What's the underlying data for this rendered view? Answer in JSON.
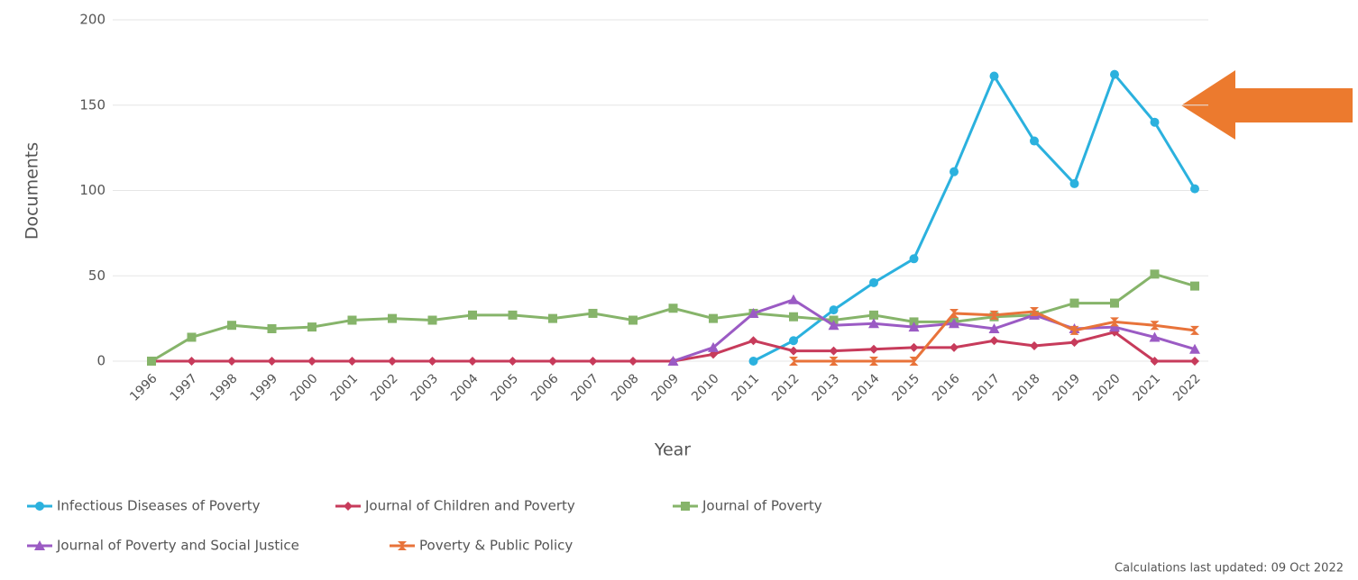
{
  "chart_data": {
    "type": "line",
    "x_label": "Year",
    "y_label": "Documents",
    "footnote": "Calculations last updated: 09 Oct 2022",
    "categories": [
      "1996",
      "1997",
      "1998",
      "1999",
      "2000",
      "2001",
      "2002",
      "2003",
      "2004",
      "2005",
      "2006",
      "2007",
      "2008",
      "2009",
      "2010",
      "2011",
      "2012",
      "2013",
      "2014",
      "2015",
      "2016",
      "2017",
      "2018",
      "2019",
      "2020",
      "2021",
      "2022"
    ],
    "ylim": [
      0,
      200
    ],
    "yticks": [
      0,
      50,
      100,
      150,
      200
    ],
    "grid": true,
    "legend": "bottom",
    "series": [
      {
        "name": "Infectious Diseases of Poverty",
        "color": "#2bb1de",
        "marker": "circle",
        "values": [
          null,
          null,
          null,
          null,
          null,
          null,
          null,
          null,
          null,
          null,
          null,
          null,
          null,
          null,
          null,
          0,
          12,
          30,
          46,
          60,
          111,
          167,
          129,
          104,
          168,
          140,
          101
        ]
      },
      {
        "name": "Journal of Children and Poverty",
        "color": "#c73b5b",
        "marker": "diamond",
        "values": [
          0,
          0,
          0,
          0,
          0,
          0,
          0,
          0,
          0,
          0,
          0,
          0,
          0,
          0,
          4,
          12,
          6,
          6,
          7,
          8,
          8,
          12,
          9,
          11,
          17,
          0,
          0
        ]
      },
      {
        "name": "Journal of Poverty",
        "color": "#86b46a",
        "marker": "square",
        "values": [
          0,
          14,
          21,
          19,
          20,
          24,
          25,
          24,
          27,
          27,
          25,
          28,
          24,
          31,
          25,
          28,
          26,
          24,
          27,
          23,
          23,
          26,
          27,
          34,
          34,
          51,
          44
        ]
      },
      {
        "name": "Journal of Poverty and Social Justice",
        "color": "#9b5bc4",
        "marker": "triangle",
        "values": [
          null,
          null,
          null,
          null,
          null,
          null,
          null,
          null,
          null,
          null,
          null,
          null,
          null,
          0,
          8,
          28,
          36,
          21,
          22,
          20,
          22,
          19,
          27,
          19,
          20,
          14,
          7
        ]
      },
      {
        "name": "Poverty & Public Policy",
        "color": "#e8733a",
        "marker": "bowtie",
        "values": [
          null,
          null,
          null,
          null,
          null,
          null,
          null,
          null,
          null,
          null,
          null,
          null,
          null,
          null,
          null,
          null,
          0,
          0,
          0,
          0,
          28,
          27,
          29,
          18,
          23,
          21,
          18
        ]
      }
    ]
  }
}
